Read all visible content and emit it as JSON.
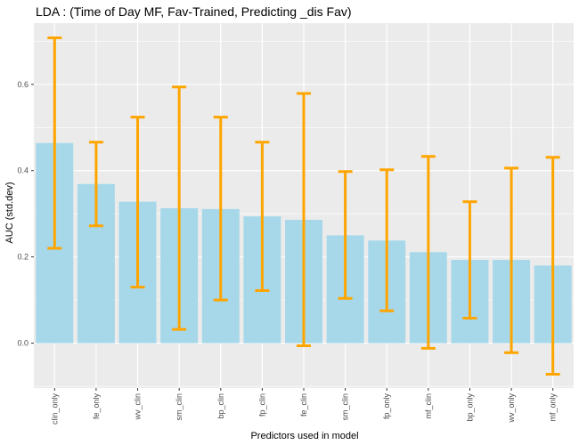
{
  "chart_data": {
    "type": "bar",
    "title": "LDA : (Time of Day MF, Fav-Trained, Predicting _dis Fav)",
    "xlabel": "Predictors used in model",
    "ylabel": "AUC (std.dev)",
    "categories": [
      "clin_only",
      "fe_only",
      "wv_clin",
      "sm_clin",
      "bp_clin",
      "fp_clin",
      "fe_clin",
      "sm_clin",
      "fp_only",
      "mf_clin",
      "bp_only",
      "wv_only",
      "mf_only"
    ],
    "values": [
      0.464,
      0.369,
      0.328,
      0.313,
      0.311,
      0.294,
      0.286,
      0.25,
      0.238,
      0.211,
      0.193,
      0.193,
      0.18
    ],
    "error_low": [
      0.22,
      0.272,
      0.13,
      0.032,
      0.1,
      0.122,
      -0.006,
      0.104,
      0.075,
      -0.012,
      0.058,
      -0.022,
      -0.072
    ],
    "error_high": [
      0.708,
      0.466,
      0.524,
      0.594,
      0.524,
      0.466,
      0.579,
      0.398,
      0.402,
      0.433,
      0.328,
      0.406,
      0.431
    ],
    "yticks": [
      0.0,
      0.2,
      0.4,
      0.6
    ],
    "ytick_labels": [
      "0.0",
      "0.2",
      "0.4",
      "0.6"
    ],
    "ylim": [
      -0.104,
      0.742
    ],
    "grid": true,
    "legend": "none",
    "colors": {
      "bar": "#a6d8ea",
      "error": "#ffa500",
      "panel": "#ebebeb",
      "grid": "#ffffff"
    }
  }
}
